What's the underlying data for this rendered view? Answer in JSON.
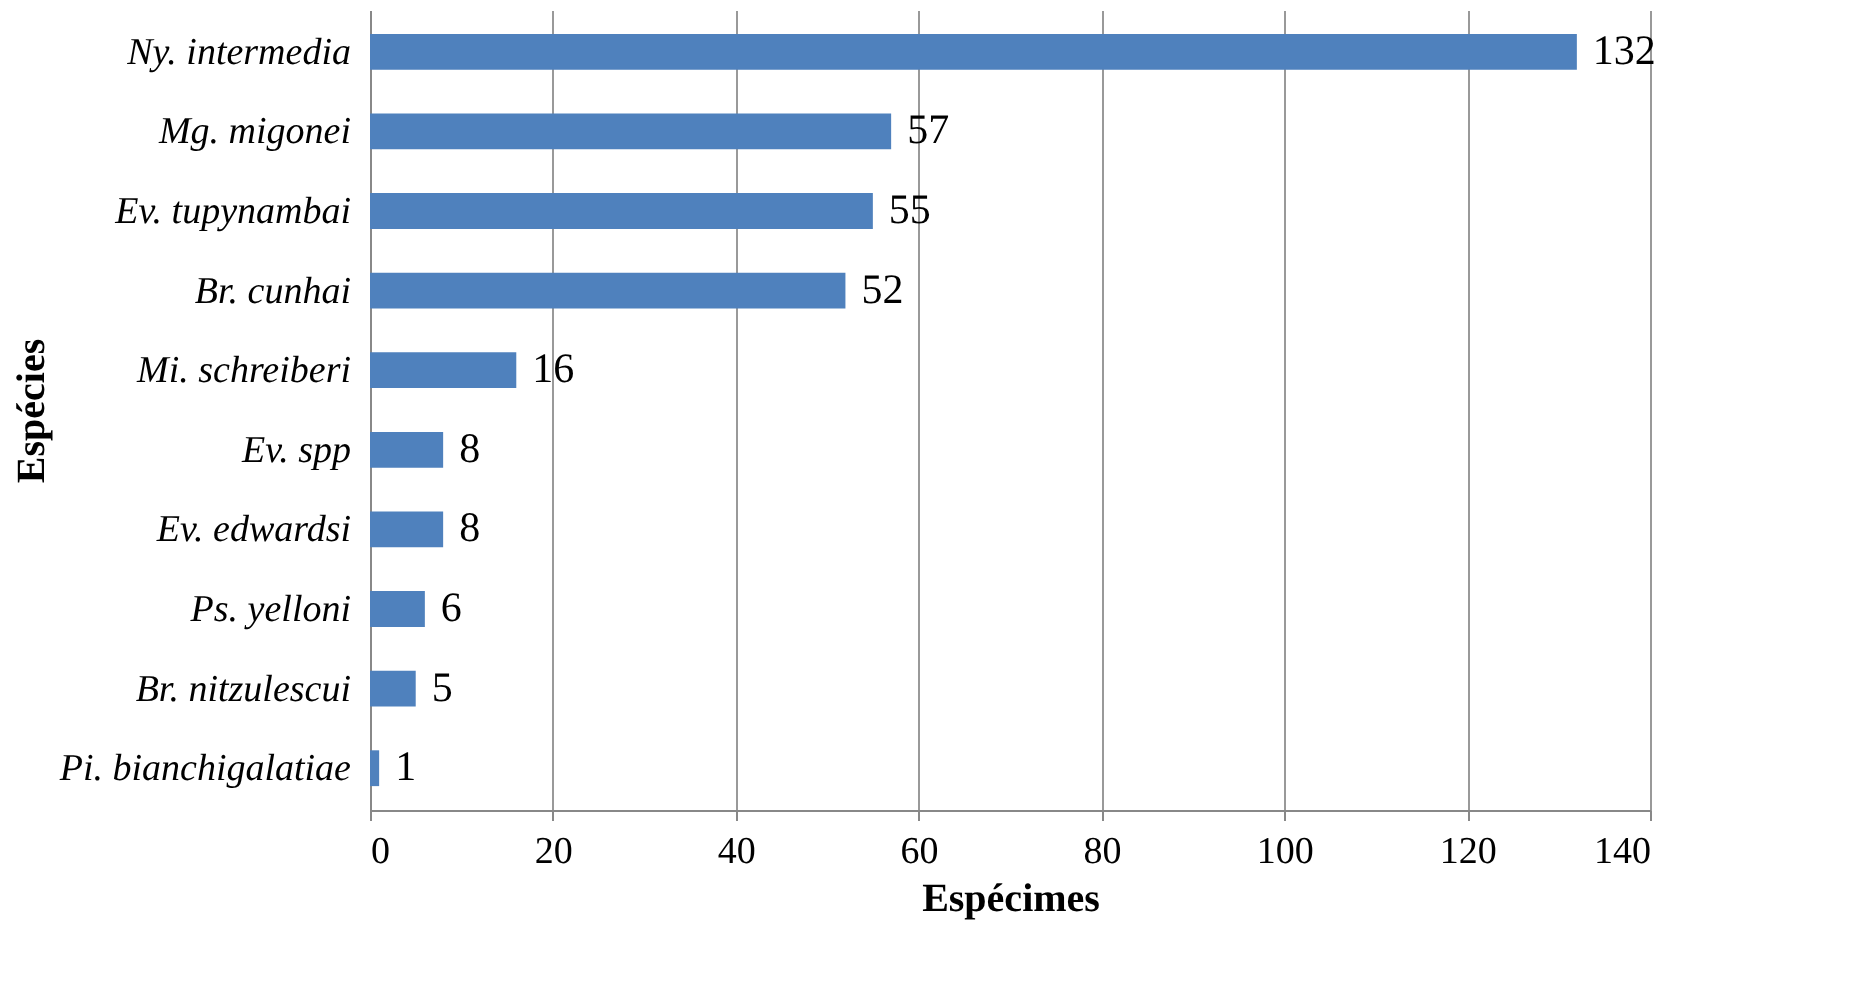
{
  "chart_data": {
    "type": "bar",
    "orientation": "horizontal",
    "xlabel": "Espécimes",
    "ylabel": "Espécies",
    "categories": [
      "Ny. intermedia",
      "Mg. migonei",
      "Ev. tupynambai",
      "Br. cunhai",
      "Mi. schreiberi",
      "Ev. spp",
      "Ev. edwardsi",
      "Ps. yelloni",
      "Br. nitzulescui",
      "Pi. bianchigalatiae"
    ],
    "values": [
      132,
      57,
      55,
      52,
      16,
      8,
      8,
      6,
      5,
      1
    ],
    "color": "#4f81bd",
    "xlim": [
      0,
      140
    ],
    "xticks": [
      0,
      20,
      40,
      60,
      80,
      100,
      120,
      140
    ],
    "grid": "x",
    "data_labels": true
  }
}
